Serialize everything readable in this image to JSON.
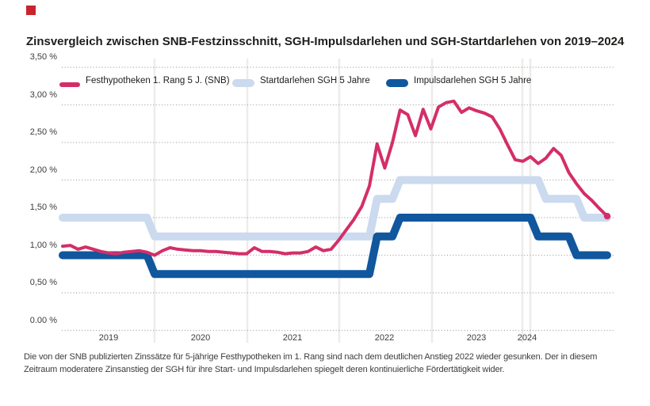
{
  "header": {
    "logo_color": "#c8242d",
    "title": "Zinsvergleich zwischen SNB-Festzinsschnitt, SGH-Impulsdarlehen und SGH-Startdarlehen von 2019–2024"
  },
  "legend": [
    {
      "label": "Festhypotheken 1. Rang 5 J. (SNB)",
      "color": "#d42e69",
      "style": "thin"
    },
    {
      "label": "Startdarlehen SGH 5 Jahre",
      "color": "#cbdaee",
      "style": "thick"
    },
    {
      "label": "Impulsdarlehen SGH 5 Jahre",
      "color": "#10579e",
      "style": "thick"
    }
  ],
  "chart_data": {
    "type": "line",
    "title": "Zinsvergleich zwischen SNB-Festzinsschnitt, SGH-Impulsdarlehen und SGH-Startdarlehen von 2019–2024",
    "frequency": "monthly",
    "x_range": "Jan 2019 – Dec 2024",
    "x_tick_labels": [
      "2019",
      "2020",
      "2021",
      "2022",
      "2023",
      "2024"
    ],
    "y_tick_labels": [
      "3,50 %",
      "3,00 %",
      "2,50 %",
      "2,00 %",
      "1,50 %",
      "1,00 %",
      "0,50 %",
      "0.00 %"
    ],
    "ylim": [
      0,
      3.5
    ],
    "unit": "%",
    "grid": {
      "horizontal": "dotted",
      "vertical": "solid-light"
    },
    "legend_position": "top-inside",
    "series": [
      {
        "name": "Festhypotheken 1. Rang 5 J. (SNB)",
        "color": "#d42e69",
        "values": [
          1.12,
          1.13,
          1.08,
          1.11,
          1.08,
          1.05,
          1.03,
          1.02,
          1.04,
          1.05,
          1.06,
          1.04,
          1.0,
          1.06,
          1.1,
          1.08,
          1.07,
          1.06,
          1.06,
          1.05,
          1.05,
          1.04,
          1.03,
          1.02,
          1.02,
          1.1,
          1.05,
          1.05,
          1.04,
          1.02,
          1.03,
          1.03,
          1.05,
          1.11,
          1.06,
          1.08,
          1.2,
          1.34,
          1.48,
          1.65,
          1.92,
          2.48,
          2.16,
          2.5,
          2.93,
          2.87,
          2.59,
          2.94,
          2.68,
          2.97,
          3.03,
          3.05,
          2.9,
          2.96,
          2.92,
          2.89,
          2.84,
          2.68,
          2.47,
          2.27,
          2.25,
          2.31,
          2.22,
          2.29,
          2.42,
          2.33,
          2.1,
          1.95,
          1.82,
          1.73,
          1.62,
          1.52
        ]
      },
      {
        "name": "Startdarlehen SGH 5 Jahre",
        "color": "#cbdaee",
        "values": [
          1.5,
          1.5,
          1.5,
          1.5,
          1.5,
          1.5,
          1.5,
          1.5,
          1.5,
          1.5,
          1.5,
          1.5,
          1.25,
          1.25,
          1.25,
          1.25,
          1.25,
          1.25,
          1.25,
          1.25,
          1.25,
          1.25,
          1.25,
          1.25,
          1.25,
          1.25,
          1.25,
          1.25,
          1.25,
          1.25,
          1.25,
          1.25,
          1.25,
          1.25,
          1.25,
          1.25,
          1.25,
          1.25,
          1.25,
          1.25,
          1.25,
          1.75,
          1.75,
          1.75,
          2.0,
          2.0,
          2.0,
          2.0,
          2.0,
          2.0,
          2.0,
          2.0,
          2.0,
          2.0,
          2.0,
          2.0,
          2.0,
          2.0,
          2.0,
          2.0,
          2.0,
          2.0,
          2.0,
          1.75,
          1.75,
          1.75,
          1.75,
          1.75,
          1.5,
          1.5,
          1.5,
          1.5
        ]
      },
      {
        "name": "Impulsdarlehen SGH 5 Jahre",
        "color": "#10579e",
        "values": [
          1.0,
          1.0,
          1.0,
          1.0,
          1.0,
          1.0,
          1.0,
          1.0,
          1.0,
          1.0,
          1.0,
          1.0,
          0.75,
          0.75,
          0.75,
          0.75,
          0.75,
          0.75,
          0.75,
          0.75,
          0.75,
          0.75,
          0.75,
          0.75,
          0.75,
          0.75,
          0.75,
          0.75,
          0.75,
          0.75,
          0.75,
          0.75,
          0.75,
          0.75,
          0.75,
          0.75,
          0.75,
          0.75,
          0.75,
          0.75,
          0.75,
          1.25,
          1.25,
          1.25,
          1.5,
          1.5,
          1.5,
          1.5,
          1.5,
          1.5,
          1.5,
          1.5,
          1.5,
          1.5,
          1.5,
          1.5,
          1.5,
          1.5,
          1.5,
          1.5,
          1.5,
          1.5,
          1.25,
          1.25,
          1.25,
          1.25,
          1.25,
          1.0,
          1.0,
          1.0,
          1.0,
          1.0
        ]
      }
    ]
  },
  "footer": {
    "lines": [
      "Die von der SNB publizierten Zinssätze für 5-jährige Festhypotheken im 1. Rang sind nach dem deutlichen Anstieg 2022 wieder gesunken. Der in diesem",
      "Zeitraum moderatere Zinsanstieg der SGH für ihre Start- und Impulsdarlehen spiegelt deren kontinuierliche Fördertätigkeit wider."
    ]
  }
}
